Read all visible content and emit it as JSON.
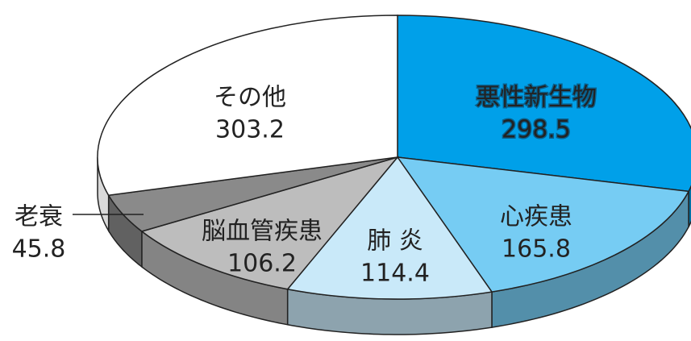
{
  "chart_data": {
    "type": "pie3d",
    "categories": [
      "悪性新生物",
      "心疾患",
      "肺 炎",
      "脳血管疾患",
      "老衰",
      "その他"
    ],
    "values": [
      298.5,
      165.8,
      114.4,
      106.2,
      45.8,
      303.2
    ],
    "colors": [
      "#00a0e9",
      "#76ccf3",
      "#c9e9f9",
      "#bdbdbd",
      "#8a8a8a",
      "#ffffff"
    ]
  }
}
